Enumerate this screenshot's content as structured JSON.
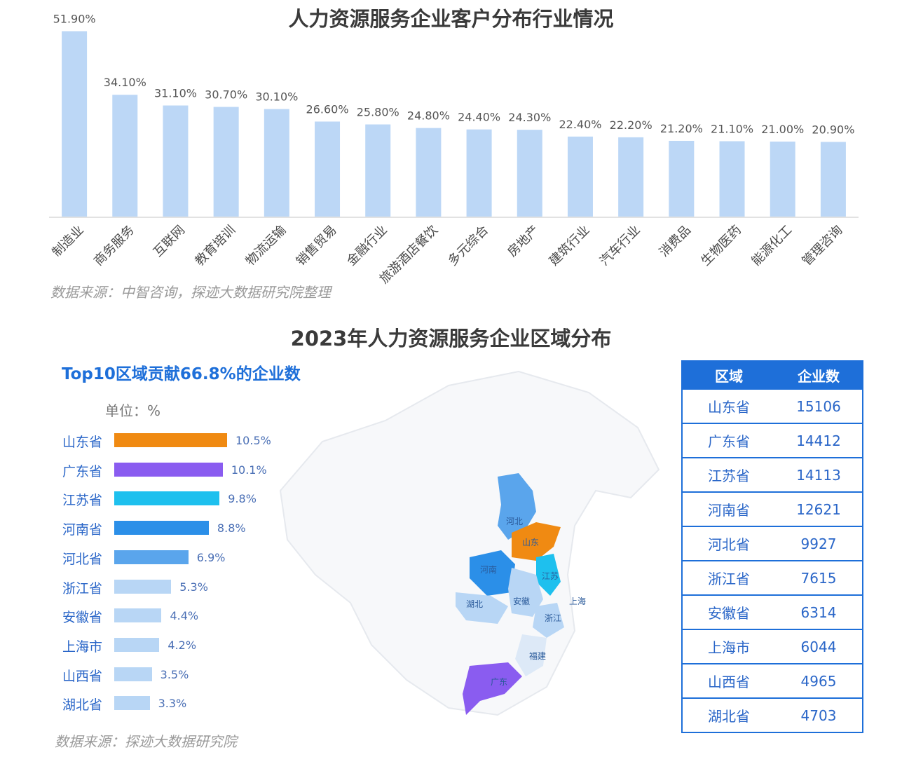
{
  "chart_data": [
    {
      "type": "bar",
      "title": "人力资源服务企业客户分布行业情况",
      "categories": [
        "制造业",
        "商务服务",
        "互联网",
        "教育培训",
        "物流运输",
        "销售贸易",
        "金融行业",
        "旅游酒店餐饮",
        "多元综合",
        "房地产",
        "建筑行业",
        "汽车行业",
        "消费品",
        "生物医药",
        "能源化工",
        "管理咨询"
      ],
      "values": [
        51.9,
        34.1,
        31.1,
        30.7,
        30.1,
        26.6,
        25.8,
        24.8,
        24.4,
        24.3,
        22.4,
        22.2,
        21.2,
        21.1,
        21.0,
        20.9
      ],
      "value_labels": [
        "51.90%",
        "34.10%",
        "31.10%",
        "30.70%",
        "30.10%",
        "26.60%",
        "25.80%",
        "24.80%",
        "24.40%",
        "24.30%",
        "22.40%",
        "22.20%",
        "21.20%",
        "21.10%",
        "21.00%",
        "20.90%"
      ],
      "ylim": [
        0,
        52
      ],
      "source": "数据来源：中智咨询，探迹大数据研究院整理",
      "bar_color": "#bcd7f6"
    },
    {
      "type": "bar",
      "orientation": "horizontal",
      "title": "2023年人力资源服务企业区域分布",
      "subtitle": "Top10区域贡献66.8%的企业数",
      "unit": "单位：%",
      "categories": [
        "山东省",
        "广东省",
        "江苏省",
        "河南省",
        "河北省",
        "浙江省",
        "安徽省",
        "上海市",
        "山西省",
        "湖北省"
      ],
      "values": [
        10.5,
        10.1,
        9.8,
        8.8,
        6.9,
        5.3,
        4.4,
        4.2,
        3.5,
        3.3
      ],
      "value_labels": [
        "10.5%",
        "10.1%",
        "9.8%",
        "8.8%",
        "6.9%",
        "5.3%",
        "4.4%",
        "4.2%",
        "3.5%",
        "3.3%"
      ],
      "colors": [
        "#f08a12",
        "#8a5cf0",
        "#1ec0ee",
        "#2b8fe8",
        "#5aa5ec",
        "#b8d6f5",
        "#b8d6f5",
        "#b8d6f5",
        "#b8d6f5",
        "#b8d6f5"
      ],
      "source": "数据来源：探迹大数据研究院"
    },
    {
      "type": "table",
      "columns": [
        "区域",
        "企业数"
      ],
      "rows": [
        [
          "山东省",
          "15106"
        ],
        [
          "广东省",
          "14412"
        ],
        [
          "江苏省",
          "14113"
        ],
        [
          "河南省",
          "12621"
        ],
        [
          "河北省",
          "9927"
        ],
        [
          "浙江省",
          "7615"
        ],
        [
          "安徽省",
          "6314"
        ],
        [
          "上海市",
          "6044"
        ],
        [
          "山西省",
          "4965"
        ],
        [
          "湖北省",
          "4703"
        ]
      ]
    }
  ],
  "map": {
    "labels": [
      "河北",
      "山东",
      "河南",
      "江苏",
      "湖北",
      "安徽",
      "上海",
      "浙江",
      "福建",
      "广东"
    ]
  }
}
